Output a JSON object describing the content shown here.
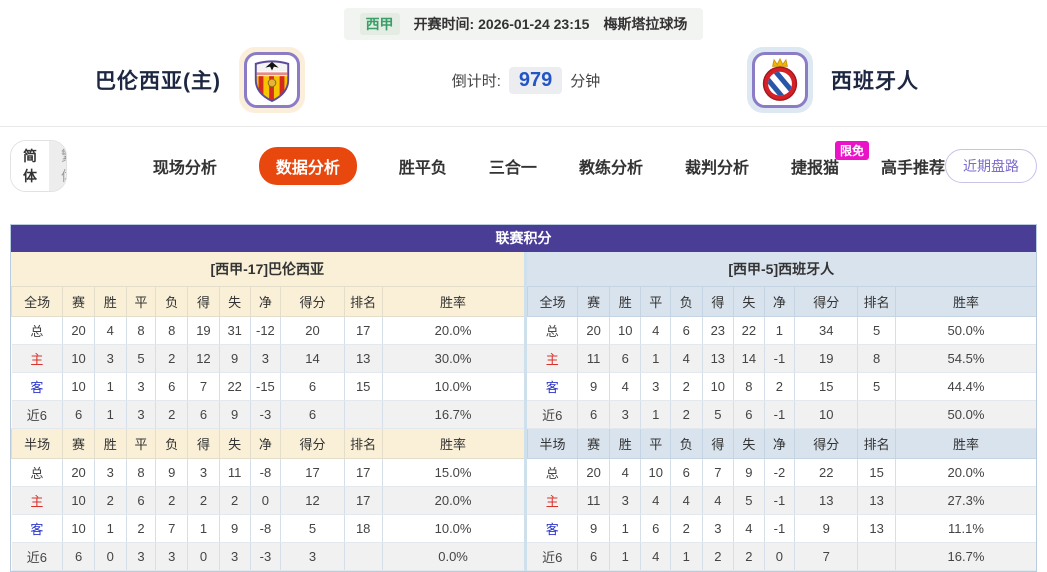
{
  "colors": {
    "accent_orange": "#e8470e",
    "header_purple": "#4a3d96",
    "badge_magenta": "#ea13c8",
    "league_green": "#3a9e68",
    "countdown_blue": "#2356c4",
    "home_row_red": "#d8322b",
    "away_row_blue": "#2b35c8",
    "home_header_cream": "#faf0d8",
    "away_header_blue": "#d9e3ed"
  },
  "header": {
    "league": "西甲",
    "kickoff_label": "开赛时间:",
    "kickoff_time": "2026-01-24 23:15",
    "venue": "梅斯塔拉球场",
    "home_team": "巴伦西亚(主)",
    "away_team": "西班牙人",
    "countdown_label": "倒计时:",
    "countdown_value": "979",
    "countdown_unit": "分钟"
  },
  "nav": {
    "lang_simplified": "简体",
    "lang_traditional": "繁体",
    "tabs": [
      {
        "label": "现场分析",
        "active": false
      },
      {
        "label": "数据分析",
        "active": true
      },
      {
        "label": "胜平负",
        "active": false
      },
      {
        "label": "三合一",
        "active": false
      },
      {
        "label": "教练分析",
        "active": false
      },
      {
        "label": "裁判分析",
        "active": false
      },
      {
        "label": "捷报猫",
        "active": false,
        "badge": "限免"
      },
      {
        "label": "高手推荐",
        "active": false
      }
    ],
    "recent_button": "近期盘路"
  },
  "table": {
    "title": "联赛积分",
    "home": {
      "team_header": "[西甲-17]巴伦西亚",
      "full": {
        "columns": [
          "全场",
          "赛",
          "胜",
          "平",
          "负",
          "得",
          "失",
          "净",
          "得分",
          "排名",
          "胜率"
        ],
        "rows": [
          {
            "label": "总",
            "values": [
              "20",
              "4",
              "8",
              "8",
              "19",
              "31",
              "-12",
              "20",
              "17",
              "20.0%"
            ]
          },
          {
            "label": "主",
            "values": [
              "10",
              "3",
              "5",
              "2",
              "12",
              "9",
              "3",
              "14",
              "13",
              "30.0%"
            ]
          },
          {
            "label": "客",
            "values": [
              "10",
              "1",
              "3",
              "6",
              "7",
              "22",
              "-15",
              "6",
              "15",
              "10.0%"
            ]
          },
          {
            "label": "近6",
            "values": [
              "6",
              "1",
              "3",
              "2",
              "6",
              "9",
              "-3",
              "6",
              "",
              "16.7%"
            ]
          }
        ]
      },
      "half": {
        "columns": [
          "半场",
          "赛",
          "胜",
          "平",
          "负",
          "得",
          "失",
          "净",
          "得分",
          "排名",
          "胜率"
        ],
        "rows": [
          {
            "label": "总",
            "values": [
              "20",
              "3",
              "8",
              "9",
              "3",
              "11",
              "-8",
              "17",
              "17",
              "15.0%"
            ]
          },
          {
            "label": "主",
            "values": [
              "10",
              "2",
              "6",
              "2",
              "2",
              "2",
              "0",
              "12",
              "17",
              "20.0%"
            ]
          },
          {
            "label": "客",
            "values": [
              "10",
              "1",
              "2",
              "7",
              "1",
              "9",
              "-8",
              "5",
              "18",
              "10.0%"
            ]
          },
          {
            "label": "近6",
            "values": [
              "6",
              "0",
              "3",
              "3",
              "0",
              "3",
              "-3",
              "3",
              "",
              "0.0%"
            ]
          }
        ]
      }
    },
    "away": {
      "team_header": "[西甲-5]西班牙人",
      "full": {
        "columns": [
          "全场",
          "赛",
          "胜",
          "平",
          "负",
          "得",
          "失",
          "净",
          "得分",
          "排名",
          "胜率"
        ],
        "rows": [
          {
            "label": "总",
            "values": [
              "20",
              "10",
              "4",
              "6",
              "23",
              "22",
              "1",
              "34",
              "5",
              "50.0%"
            ]
          },
          {
            "label": "主",
            "values": [
              "11",
              "6",
              "1",
              "4",
              "13",
              "14",
              "-1",
              "19",
              "8",
              "54.5%"
            ]
          },
          {
            "label": "客",
            "values": [
              "9",
              "4",
              "3",
              "2",
              "10",
              "8",
              "2",
              "15",
              "5",
              "44.4%"
            ]
          },
          {
            "label": "近6",
            "values": [
              "6",
              "3",
              "1",
              "2",
              "5",
              "6",
              "-1",
              "10",
              "",
              "50.0%"
            ]
          }
        ]
      },
      "half": {
        "columns": [
          "半场",
          "赛",
          "胜",
          "平",
          "负",
          "得",
          "失",
          "净",
          "得分",
          "排名",
          "胜率"
        ],
        "rows": [
          {
            "label": "总",
            "values": [
              "20",
              "4",
              "10",
              "6",
              "7",
              "9",
              "-2",
              "22",
              "15",
              "20.0%"
            ]
          },
          {
            "label": "主",
            "values": [
              "11",
              "3",
              "4",
              "4",
              "4",
              "5",
              "-1",
              "13",
              "13",
              "27.3%"
            ]
          },
          {
            "label": "客",
            "values": [
              "9",
              "1",
              "6",
              "2",
              "3",
              "4",
              "-1",
              "9",
              "13",
              "11.1%"
            ]
          },
          {
            "label": "近6",
            "values": [
              "6",
              "1",
              "4",
              "1",
              "2",
              "2",
              "0",
              "7",
              "",
              "16.7%"
            ]
          }
        ]
      }
    }
  }
}
